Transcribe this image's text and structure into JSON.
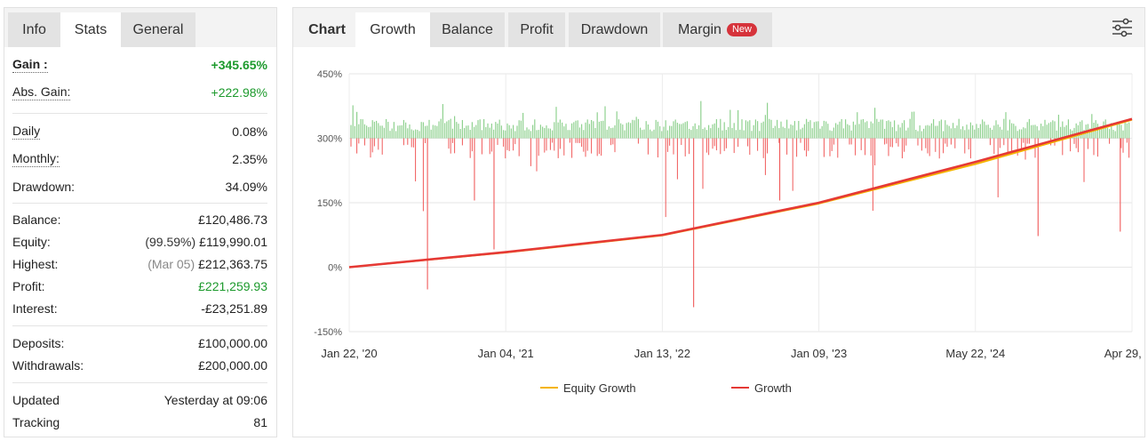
{
  "left_tabs": [
    "Info",
    "Stats",
    "General"
  ],
  "stats": {
    "gain": {
      "label": "Gain :",
      "value": "+345.65%"
    },
    "abs_gain": {
      "label": "Abs. Gain:",
      "value": "+222.98%"
    },
    "daily": {
      "label": "Daily",
      "value": "0.08%"
    },
    "monthly": {
      "label": "Monthly:",
      "value": "2.35%"
    },
    "drawdown": {
      "label": "Drawdown:",
      "value": "34.09%"
    },
    "balance": {
      "label": "Balance:",
      "value": "£120,486.73"
    },
    "equity": {
      "label": "Equity:",
      "prefix": "(99.59%)",
      "value": "£119,990.01"
    },
    "highest": {
      "label": "Highest:",
      "prefix": "(Mar 05)",
      "value": "£212,363.75"
    },
    "profit": {
      "label": "Profit:",
      "value": "£221,259.93"
    },
    "interest": {
      "label": "Interest:",
      "value": "-£23,251.89"
    },
    "deposits": {
      "label": "Deposits:",
      "value": "£100,000.00"
    },
    "withdrawals": {
      "label": "Withdrawals:",
      "value": "£200,000.00"
    },
    "updated": {
      "label": "Updated",
      "value": "Yesterday at 09:06"
    },
    "tracking": {
      "label": "Tracking",
      "value": "81"
    }
  },
  "right_tabs": {
    "chart": "Chart",
    "growth": "Growth",
    "balance": "Balance",
    "profit": "Profit",
    "drawdown": "Drawdown",
    "margin": "Margin",
    "new_badge": "New"
  },
  "settings_icon": "sliders-icon",
  "colors": {
    "growth": "#e53935",
    "equity": "#f5b400",
    "positive_bar": "#8fd18f",
    "negative_bar": "#f05a5a",
    "gain_text": "#1d9a2d",
    "badge": "#d6333b"
  },
  "chart_data": {
    "type": "line",
    "x_tick_labels": [
      "Jan 22, '20",
      "Jan 04, '21",
      "Jan 13, '22",
      "Jan 09, '23",
      "May 22, '24",
      "Apr 29, '25"
    ],
    "y_tick_labels": [
      "450%",
      "300%",
      "150%",
      "0%",
      "-150%"
    ],
    "ylim": [
      -150,
      450
    ],
    "grid": true,
    "legend": [
      "Equity Growth",
      "Growth"
    ],
    "legend_position": "bottom",
    "series": [
      {
        "name": "Growth",
        "x": [
          "Jan 22, '20",
          "Jan 04, '21",
          "Jan 13, '22",
          "Jan 09, '23",
          "May 22, '24",
          "Apr 29, '25"
        ],
        "values": [
          0,
          35,
          75,
          150,
          245,
          345
        ]
      },
      {
        "name": "Equity Growth",
        "x": [
          "Jan 22, '20",
          "Jan 04, '21",
          "Jan 13, '22",
          "Jan 09, '23",
          "May 22, '24",
          "Apr 29, '25"
        ],
        "values": [
          0,
          34,
          74,
          148,
          240,
          343
        ]
      }
    ]
  }
}
